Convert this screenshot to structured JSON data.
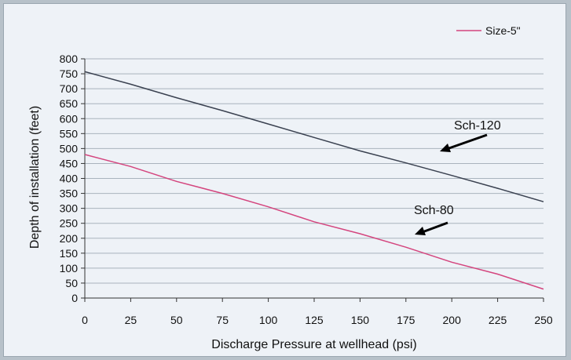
{
  "chart_data": {
    "type": "line",
    "title": "",
    "xlabel": "Discharge Pressure at wellhead (psi)",
    "ylabel": "Depth of installation (feet)",
    "xlim": [
      0,
      250
    ],
    "ylim": [
      0,
      800
    ],
    "x_ticks": [
      0,
      25,
      50,
      75,
      100,
      125,
      150,
      175,
      200,
      225,
      250
    ],
    "y_ticks": [
      0,
      50,
      100,
      150,
      200,
      250,
      300,
      350,
      400,
      450,
      500,
      550,
      600,
      650,
      700,
      750,
      800
    ],
    "grid": "horizontal",
    "legend": {
      "position": "top-right",
      "entries": [
        "Size-5\""
      ]
    },
    "series": [
      {
        "name": "Sch-120",
        "color": "#3a4150",
        "x": [
          0,
          25,
          50,
          75,
          100,
          125,
          150,
          175,
          200,
          225,
          250
        ],
        "values": [
          757,
          715,
          670,
          627,
          582,
          537,
          492,
          452,
          410,
          367,
          322
        ]
      },
      {
        "name": "Sch-80",
        "color": "#d4457e",
        "x": [
          0,
          25,
          50,
          75,
          100,
          125,
          150,
          175,
          200,
          225,
          250
        ],
        "values": [
          480,
          440,
          390,
          350,
          305,
          255,
          215,
          170,
          120,
          80,
          30
        ]
      }
    ],
    "annotations": [
      {
        "text": "Sch-120",
        "series": "Sch-120"
      },
      {
        "text": "Sch-80",
        "series": "Sch-80"
      }
    ]
  }
}
